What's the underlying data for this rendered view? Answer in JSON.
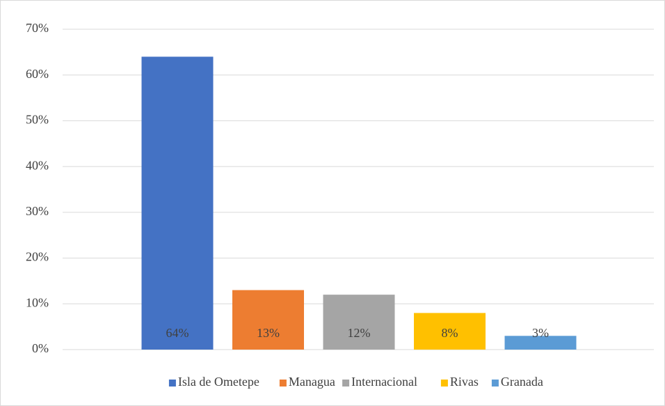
{
  "chart_data": {
    "type": "bar",
    "categories": [
      null
    ],
    "series": [
      {
        "name": "Isla de Ometepe",
        "color": "#4472c4",
        "values": [
          64
        ],
        "value_labels": [
          "64%"
        ]
      },
      {
        "name": "Managua",
        "color": "#ed7d31",
        "values": [
          13
        ],
        "value_labels": [
          "13%"
        ]
      },
      {
        "name": "Internacional",
        "color": "#a5a5a5",
        "values": [
          12
        ],
        "value_labels": [
          "12%"
        ]
      },
      {
        "name": "Rivas",
        "color": "#ffc000",
        "values": [
          8
        ],
        "value_labels": [
          "8%"
        ]
      },
      {
        "name": "Granada",
        "color": "#5b9bd5",
        "values": [
          3
        ],
        "value_labels": [
          "3%"
        ]
      }
    ],
    "ylim": [
      0,
      70
    ],
    "yticks": [
      {
        "value": 0,
        "label": "0%"
      },
      {
        "value": 10,
        "label": "10%"
      },
      {
        "value": 20,
        "label": "20%"
      },
      {
        "value": 30,
        "label": "30%"
      },
      {
        "value": 40,
        "label": "40%"
      },
      {
        "value": 50,
        "label": "50%"
      },
      {
        "value": 60,
        "label": "60%"
      },
      {
        "value": 70,
        "label": "70%"
      }
    ],
    "grid": true,
    "legend": "bottom"
  }
}
